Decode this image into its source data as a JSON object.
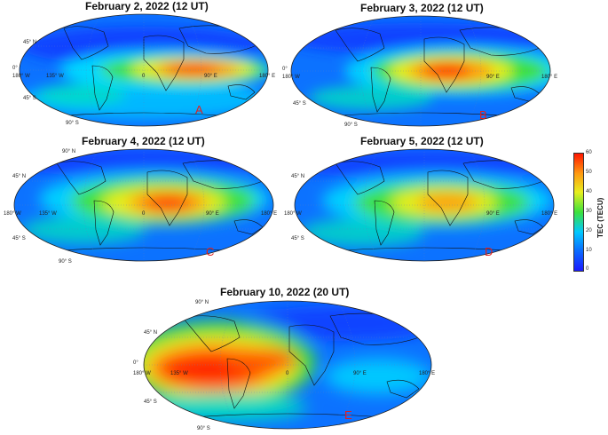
{
  "colors": {
    "scale": [
      "#1a1aff",
      "#0b6cff",
      "#00c8ff",
      "#3ce13c",
      "#e7ef1e",
      "#ff9a10",
      "#ff1600"
    ]
  },
  "maps": [
    {
      "title": "February 2, 2022 (12 UT)",
      "letter": "A",
      "labels": {
        "lat_n": "45° N",
        "lat_0": "0°",
        "lat_s": "45° S",
        "lat_s90": "90° S",
        "lon_w180": "180° W",
        "lon_w135": "135° W",
        "lon_0": "0",
        "lon_e90": "90° E",
        "lon_e180": "180° E"
      },
      "tec_max_region": "Africa / Indian Ocean"
    },
    {
      "title": "February 3, 2022 (12 UT)",
      "letter": "B",
      "labels": {
        "lat_n": "45° N",
        "lat_0": "0°",
        "lat_s": "45° S",
        "lat_s90": "90° S",
        "lon_w180": "180° W",
        "lon_w135": "135° W",
        "lon_0": "0",
        "lon_e90": "90° E",
        "lon_e180": "180° E"
      },
      "tec_max_region": "Africa"
    },
    {
      "title": "February 4, 2022 (12 UT)",
      "letter": "C",
      "labels": {
        "lat_n": "45° N",
        "lat_0": "0°",
        "lat_s": "45° S",
        "lat_s90": "90° S",
        "lon_w180": "180° W",
        "lon_w135": "135° W",
        "lon_0": "0",
        "lon_e90": "90° E",
        "lon_e180": "180° E"
      },
      "tec_max_region": "Africa"
    },
    {
      "title": "February 5, 2022 (12 UT)",
      "letter": "D",
      "labels": {
        "lat_n": "45° N",
        "lat_0": "0°",
        "lat_s": "45° S",
        "lat_s90": "90° S",
        "lon_w180": "180° W",
        "lon_w135": "135° W",
        "lon_0": "0",
        "lon_e90": "90° E",
        "lon_e180": "180° E"
      },
      "tec_max_region": "Africa"
    },
    {
      "title": "February 10, 2022 (20 UT)",
      "letter": "E",
      "labels": {
        "lat_n": "45° N",
        "lat_0": "0°",
        "lat_s": "45° S",
        "lat_s90": "90° S",
        "lon_w180": "180° W",
        "lon_w135": "135° W",
        "lon_0": "0",
        "lon_e90": "90° E",
        "lon_e180": "180° E"
      },
      "tec_max_region": "South America / Atlantic"
    }
  ],
  "colorbar": {
    "title": "TEC (TECU)",
    "ticks": [
      "60",
      "50",
      "40",
      "30",
      "20",
      "10",
      "0"
    ],
    "min": 0,
    "max": 60
  }
}
